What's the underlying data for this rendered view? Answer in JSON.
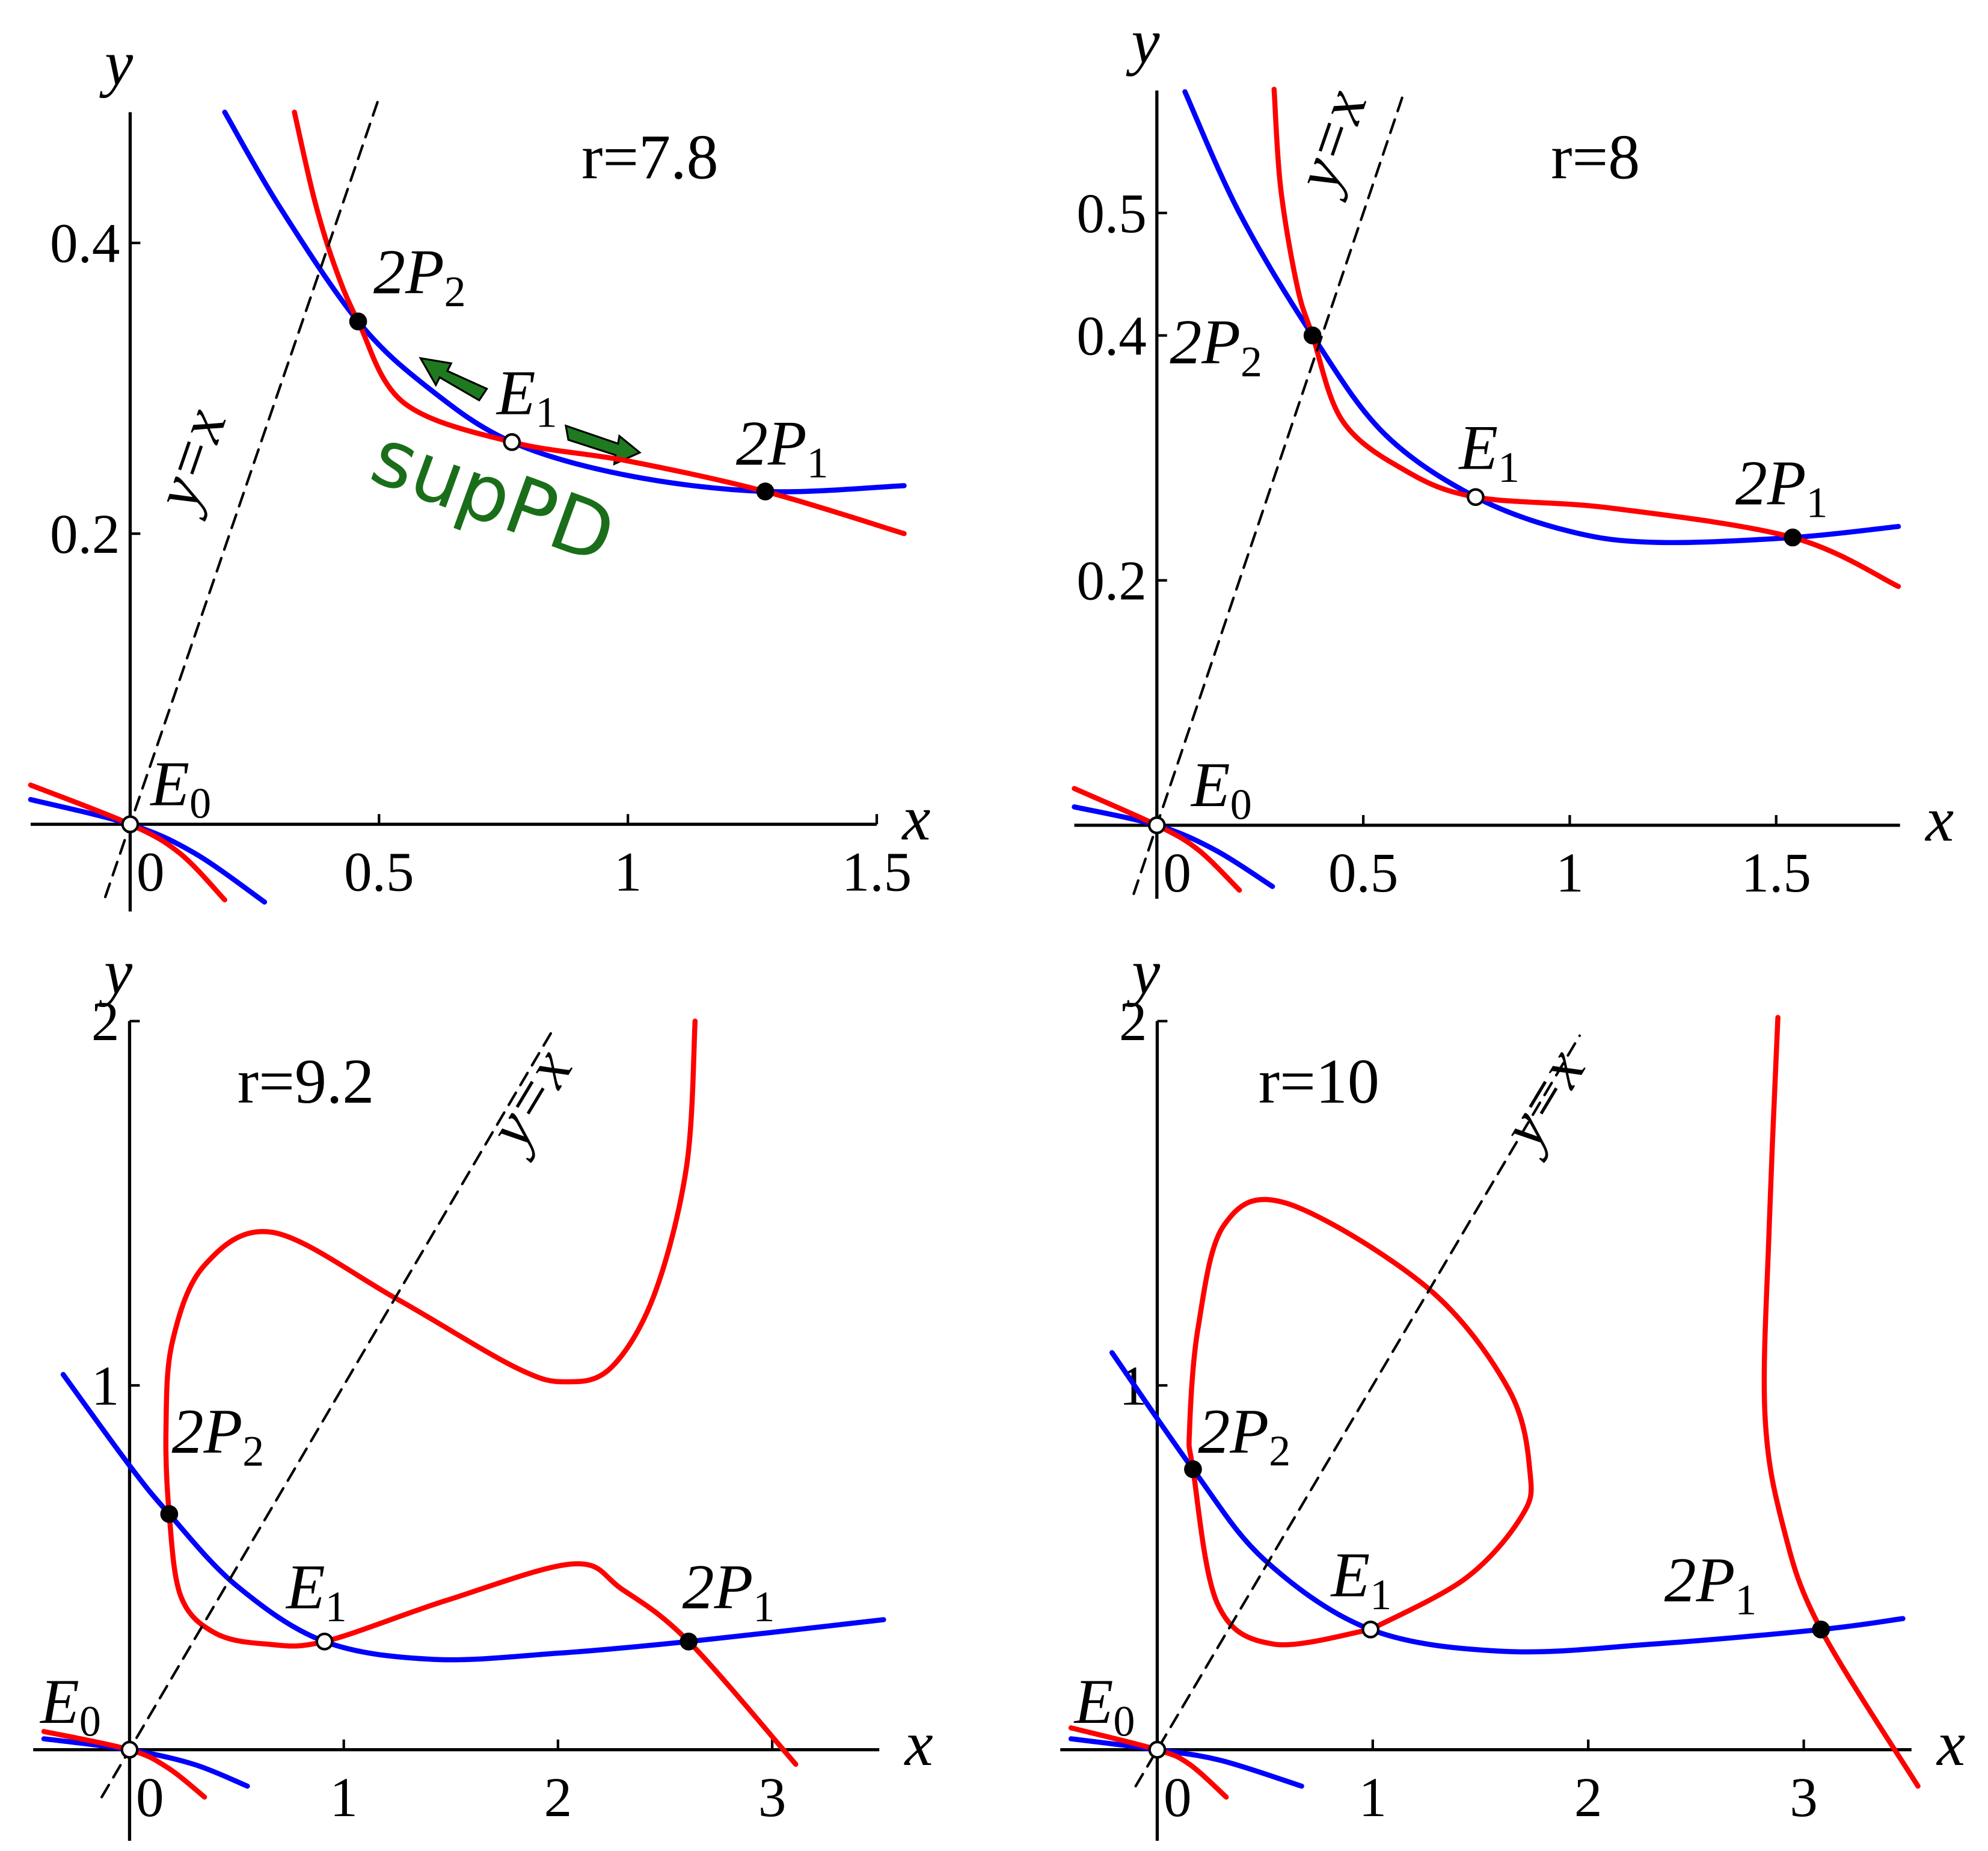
{
  "chart_data": [
    {
      "type": "line",
      "title": "r=7.8",
      "x_label": "x",
      "y_label": "y",
      "xlim": [
        -0.2,
        1.5
      ],
      "ylim": [
        -0.06,
        0.49
      ],
      "xticks": [
        0,
        0.5,
        1,
        1.5
      ],
      "yticks": [
        0.2,
        0.4
      ],
      "series": [
        {
          "color": "#0000ff",
          "x": [
            0.19,
            0.3,
            0.458,
            0.6,
            0.767,
            1.0,
            1.276,
            1.555
          ],
          "y": [
            0.49,
            0.425,
            0.346,
            0.3,
            0.263,
            0.24,
            0.229,
            0.233
          ]
        },
        {
          "color": "#ff0000",
          "x": [
            0.33,
            0.37,
            0.41,
            0.458,
            0.55,
            0.767,
            1.0,
            1.276,
            1.555
          ],
          "y": [
            0.49,
            0.43,
            0.385,
            0.346,
            0.29,
            0.263,
            0.25,
            0.229,
            0.2
          ]
        },
        {
          "color": "#0000ff",
          "x": [
            -0.2,
            0,
            0.13,
            0.27
          ],
          "y": [
            0.017,
            0,
            -0.02,
            -0.0535
          ]
        },
        {
          "color": "#ff0000",
          "x": [
            -0.2,
            0,
            0.1,
            0.19
          ],
          "y": [
            0.027,
            0,
            -0.02,
            -0.052
          ]
        },
        {
          "color": "#000000",
          "dashed": true,
          "label": "y=x",
          "x": [
            -0.05,
            0.5
          ],
          "y": [
            -0.05,
            0.5
          ]
        }
      ],
      "points": [
        {
          "label": "E",
          "sub": "0",
          "x": 0,
          "y": 0,
          "filled": false
        },
        {
          "label": "E",
          "sub": "1",
          "x": 0.767,
          "y": 0.263,
          "filled": false
        },
        {
          "label": "2P",
          "sub": "1",
          "x": 1.276,
          "y": 0.229,
          "filled": true
        },
        {
          "label": "2P",
          "sub": "2",
          "x": 0.458,
          "y": 0.346,
          "filled": true
        }
      ],
      "annotation": "supPD"
    },
    {
      "type": "line",
      "title": "r=8",
      "x_label": "x",
      "y_label": "y",
      "xlim": [
        -0.2,
        1.8
      ],
      "ylim": [
        -0.06,
        0.6
      ],
      "xticks": [
        0,
        0.5,
        1,
        1.5
      ],
      "yticks": [
        0.2,
        0.4,
        0.5
      ],
      "series": [
        {
          "color": "#0000ff",
          "x": [
            0.068,
            0.2,
            0.377,
            0.55,
            0.772,
            1.0,
            1.21,
            1.54,
            1.796
          ],
          "y": [
            0.599,
            0.5,
            0.4,
            0.32,
            0.268,
            0.24,
            0.231,
            0.235,
            0.244
          ]
        },
        {
          "color": "#ff0000",
          "x": [
            0.284,
            0.3,
            0.34,
            0.377,
            0.45,
            0.6,
            0.772,
            1.1,
            1.54,
            1.796
          ],
          "y": [
            0.601,
            0.52,
            0.44,
            0.4,
            0.33,
            0.29,
            0.268,
            0.259,
            0.235,
            0.195
          ]
        },
        {
          "color": "#0000ff",
          "x": [
            -0.2,
            0,
            0.14,
            0.28
          ],
          "y": [
            0.015,
            0,
            -0.02,
            -0.05
          ]
        },
        {
          "color": "#ff0000",
          "x": [
            -0.2,
            0,
            0.1,
            0.2
          ],
          "y": [
            0.03,
            0,
            -0.02,
            -0.053
          ]
        },
        {
          "color": "#000000",
          "dashed": true,
          "label": "y=x",
          "x": [
            -0.056,
            0.6
          ],
          "y": [
            -0.056,
            0.6
          ]
        }
      ],
      "points": [
        {
          "label": "E",
          "sub": "0",
          "x": 0,
          "y": 0,
          "filled": false
        },
        {
          "label": "E",
          "sub": "1",
          "x": 0.772,
          "y": 0.268,
          "filled": false
        },
        {
          "label": "2P",
          "sub": "1",
          "x": 1.54,
          "y": 0.235,
          "filled": true
        },
        {
          "label": "2P",
          "sub": "2",
          "x": 0.377,
          "y": 0.4,
          "filled": true
        }
      ]
    },
    {
      "type": "line",
      "title": "r=9.2",
      "x_label": "x",
      "y_label": "y",
      "xlim": [
        -0.45,
        3.5
      ],
      "ylim": [
        -0.25,
        2.0
      ],
      "xticks": [
        0,
        1,
        2,
        3
      ],
      "yticks": [
        1,
        2
      ],
      "series": [
        {
          "color": "#0000ff",
          "x": [
            -0.31,
            0,
            0.185,
            0.5,
            0.91,
            1.42,
            2.0,
            2.61,
            3.52
          ],
          "y": [
            1.03,
            0.78,
            0.647,
            0.45,
            0.297,
            0.248,
            0.265,
            0.297,
            0.357
          ]
        },
        {
          "color": "#ff0000",
          "x": [
            2.64,
            2.6,
            2.45,
            2.25,
            2.04,
            1.8,
            1.24,
            0.67,
            0.35,
            0.2,
            0.17,
            0.185,
            0.24,
            0.4,
            0.64,
            0.91,
            1.48,
            2.07,
            2.3,
            2.61,
            3.11
          ],
          "y": [
            2.0,
            1.6,
            1.25,
            1.05,
            1.01,
            1.05,
            1.24,
            1.42,
            1.33,
            1.12,
            0.88,
            0.647,
            0.42,
            0.32,
            0.29,
            0.297,
            0.41,
            0.51,
            0.44,
            0.297,
            -0.04
          ]
        },
        {
          "color": "#0000ff",
          "x": [
            -0.4,
            0,
            0.3,
            0.55
          ],
          "y": [
            0.03,
            0,
            -0.04,
            -0.1
          ]
        },
        {
          "color": "#ff0000",
          "x": [
            -0.4,
            0,
            0.18,
            0.35
          ],
          "y": [
            0.05,
            0,
            -0.05,
            -0.13
          ]
        },
        {
          "color": "#000000",
          "dashed": true,
          "label": "y=x",
          "x": [
            -0.13,
            1.98
          ],
          "y": [
            -0.13,
            1.98
          ]
        }
      ],
      "points": [
        {
          "label": "E",
          "sub": "0",
          "x": 0,
          "y": 0,
          "filled": false
        },
        {
          "label": "E",
          "sub": "1",
          "x": 0.91,
          "y": 0.297,
          "filled": false
        },
        {
          "label": "2P",
          "sub": "1",
          "x": 2.61,
          "y": 0.297,
          "filled": true
        },
        {
          "label": "2P",
          "sub": "2",
          "x": 0.185,
          "y": 0.647,
          "filled": true
        }
      ]
    },
    {
      "type": "line",
      "title": "r=10",
      "x_label": "x",
      "y_label": "y",
      "xlim": [
        -0.45,
        3.5
      ],
      "ylim": [
        -0.25,
        2.0
      ],
      "xticks": [
        0,
        1,
        2,
        3
      ],
      "yticks": [
        1,
        2
      ],
      "series": [
        {
          "color": "#0000ff",
          "x": [
            -0.21,
            0.166,
            0.5,
            0.99,
            1.61,
            2.3,
            3.08,
            3.46
          ],
          "y": [
            1.09,
            0.77,
            0.52,
            0.33,
            0.27,
            0.29,
            0.33,
            0.36
          ]
        },
        {
          "color": "#ff0000",
          "x": [
            0.99,
            1.43,
            1.69,
            1.73,
            1.63,
            1.25,
            0.6,
            0.31,
            0.19,
            0.15,
            0.166,
            0.28,
            0.54,
            0.99
          ],
          "y": [
            0.33,
            0.47,
            0.64,
            0.76,
            0.99,
            1.27,
            1.5,
            1.44,
            1.16,
            0.88,
            0.77,
            0.4,
            0.29,
            0.33
          ]
        },
        {
          "color": "#ff0000",
          "x": [
            2.88,
            2.84,
            2.82,
            2.91,
            3.08,
            3.53
          ],
          "y": [
            2.01,
            1.44,
            0.92,
            0.6,
            0.33,
            -0.1
          ]
        },
        {
          "color": "#0000ff",
          "x": [
            -0.4,
            0,
            0.3,
            0.67
          ],
          "y": [
            0.03,
            0,
            -0.03,
            -0.1
          ]
        },
        {
          "color": "#ff0000",
          "x": [
            -0.4,
            0,
            0.15,
            0.32
          ],
          "y": [
            0.06,
            0,
            -0.04,
            -0.13
          ]
        },
        {
          "color": "#000000",
          "dashed": true,
          "label": "y=x",
          "x": [
            -0.1,
            1.96
          ],
          "y": [
            -0.1,
            1.96
          ]
        }
      ],
      "points": [
        {
          "label": "E",
          "sub": "0",
          "x": 0,
          "y": 0,
          "filled": false
        },
        {
          "label": "E",
          "sub": "1",
          "x": 0.99,
          "y": 0.33,
          "filled": false
        },
        {
          "label": "2P",
          "sub": "1",
          "x": 3.08,
          "y": 0.33,
          "filled": true
        },
        {
          "label": "2P",
          "sub": "2",
          "x": 0.166,
          "y": 0.77,
          "filled": true
        }
      ]
    }
  ]
}
